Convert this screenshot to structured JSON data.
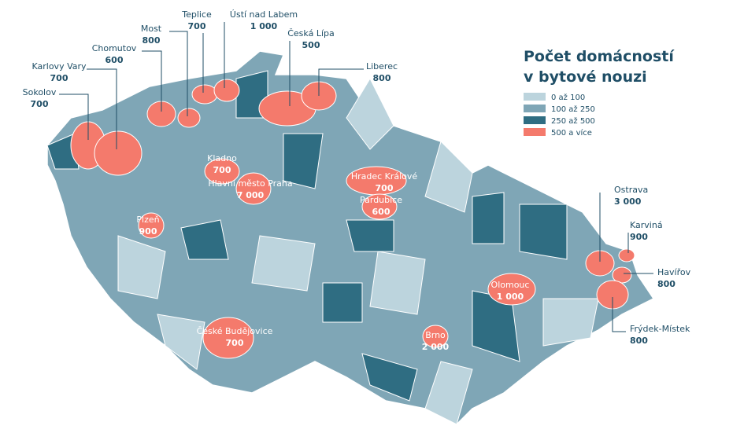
{
  "title": [
    "Počet domácností",
    "v bytové nouzi"
  ],
  "legend": [
    {
      "label": "0 až 100",
      "color": "#bcd4dd"
    },
    {
      "label": "100 až 250",
      "color": "#7fa6b6"
    },
    {
      "label": "250 až 500",
      "color": "#2f6d82"
    },
    {
      "label": "500 a více",
      "color": "#f47a6c"
    }
  ],
  "cities": [
    {
      "name": "Sokolov",
      "value": "700"
    },
    {
      "name": "Karlovy Vary",
      "value": "700"
    },
    {
      "name": "Chomutov",
      "value": "600"
    },
    {
      "name": "Most",
      "value": "800"
    },
    {
      "name": "Teplice",
      "value": "700"
    },
    {
      "name": "Ústí nad Labem",
      "value": "1 000"
    },
    {
      "name": "Česká Lípa",
      "value": "500"
    },
    {
      "name": "Liberec",
      "value": "800"
    },
    {
      "name": "Ostrava",
      "value": "3 000"
    },
    {
      "name": "Karviná",
      "value": "900"
    },
    {
      "name": "Havířov",
      "value": "800"
    },
    {
      "name": "Frýdek-Místek",
      "value": "800"
    },
    {
      "name": "Kladno",
      "value": "700"
    },
    {
      "name": "Hlavní město Praha",
      "value": "7 000"
    },
    {
      "name": "Plzeň",
      "value": "900"
    },
    {
      "name": "Hradec Králové",
      "value": "700"
    },
    {
      "name": "Pardubice",
      "value": "600"
    },
    {
      "name": "Olomouc",
      "value": "1 000"
    },
    {
      "name": "Brno",
      "value": "2 000"
    },
    {
      "name": "České Budějovice",
      "value": "700"
    }
  ]
}
